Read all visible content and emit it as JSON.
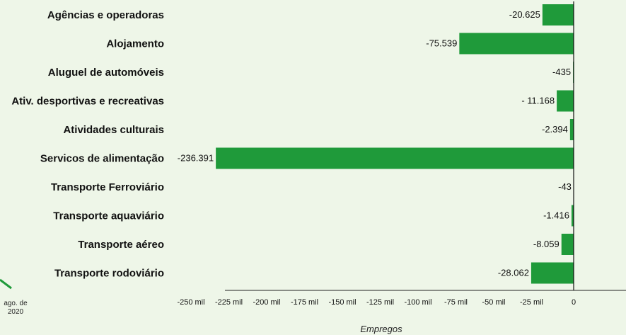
{
  "chart_data": {
    "type": "bar",
    "orientation": "horizontal",
    "categories": [
      "Agências e operadoras",
      "Alojamento",
      "Aluguel de automóveis",
      "Ativ. desportivas e recreativas",
      "Atividades culturais",
      "Servicos de alimentação",
      "Transporte Ferroviário",
      "Transporte aquaviário",
      "Transporte aéreo",
      "Transporte rodoviário"
    ],
    "values": [
      -20625,
      -75539,
      -435,
      -11168,
      -2394,
      -236391,
      -43,
      -1416,
      -8059,
      -28062
    ],
    "data_labels": [
      "-20.625",
      "-75.539",
      "-435",
      "- 11.168",
      "-2.394",
      "-236.391",
      "-43",
      "-1.416",
      "-8.059",
      "-28.062"
    ],
    "xlabel": "Empregos",
    "xlim": [
      -250000,
      0
    ],
    "xticks": [
      {
        "value": -250000,
        "label": "-250 mil"
      },
      {
        "value": -225000,
        "label": "-225 mil"
      },
      {
        "value": -200000,
        "label": "-200 mil"
      },
      {
        "value": -175000,
        "label": "-175 mil"
      },
      {
        "value": -150000,
        "label": "-150 mil"
      },
      {
        "value": -125000,
        "label": "-125 mil"
      },
      {
        "value": -100000,
        "label": "-100 mil"
      },
      {
        "value": -75000,
        "label": "-75 mil"
      },
      {
        "value": -50000,
        "label": "-50 mil"
      },
      {
        "value": -25000,
        "label": "-25 mil"
      },
      {
        "value": 0,
        "label": "0"
      }
    ],
    "grid": false,
    "bar_color": "#1f9a3a",
    "background_color": "#eef6e8"
  },
  "side_note": {
    "line1": "ago. de",
    "line2": "2020",
    "accent_color": "#1f9a3a"
  }
}
